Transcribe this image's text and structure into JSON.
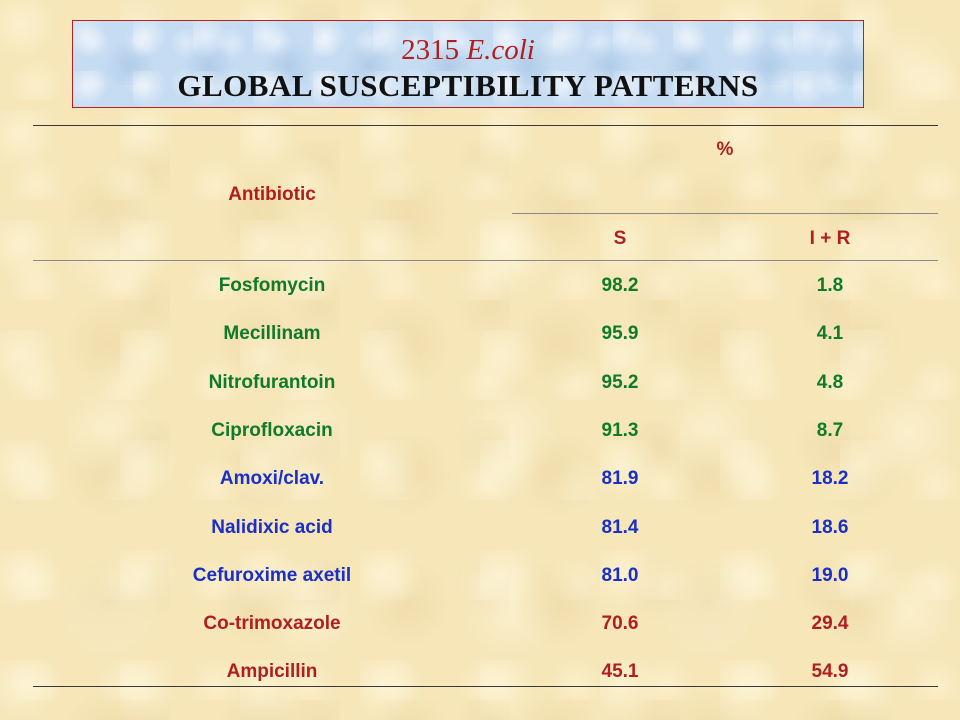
{
  "title": {
    "count": "2315",
    "organism": "E.coli",
    "subtitle": "GLOBAL SUSCEPTIBILITY PATTERNS"
  },
  "table": {
    "headers": {
      "antibiotic": "Antibiotic",
      "percent": "%",
      "s": "S",
      "ir": "I + R"
    },
    "rows": [
      {
        "name": "Fosfomycin",
        "s": "98.2",
        "ir": "1.8",
        "color": "#0e7a2a"
      },
      {
        "name": "Mecillinam",
        "s": "95.9",
        "ir": "4.1",
        "color": "#0e7a2a"
      },
      {
        "name": "Nitrofurantoin",
        "s": "95.2",
        "ir": "4.8",
        "color": "#0e7a2a"
      },
      {
        "name": "Ciprofloxacin",
        "s": "91.3",
        "ir": "8.7",
        "color": "#0e7a2a"
      },
      {
        "name": "Amoxi/clav.",
        "s": "81.9",
        "ir": "18.2",
        "color": "#1a2ec8"
      },
      {
        "name": "Nalidixic acid",
        "s": "81.4",
        "ir": "18.6",
        "color": "#1a2ec8"
      },
      {
        "name": "Cefuroxime axetil",
        "s": "81.0",
        "ir": "19.0",
        "color": "#1a2ec8"
      },
      {
        "name": "Co-trimoxazole",
        "s": "70.6",
        "ir": "29.4",
        "color": "#b01e1e"
      },
      {
        "name": "Ampicillin",
        "s": "45.1",
        "ir": "54.9",
        "color": "#b01e1e"
      }
    ]
  },
  "colors": {
    "header_text": "#b01e1e",
    "title_box_bg": "#c6dcf2",
    "background": "#f6e6b8"
  }
}
